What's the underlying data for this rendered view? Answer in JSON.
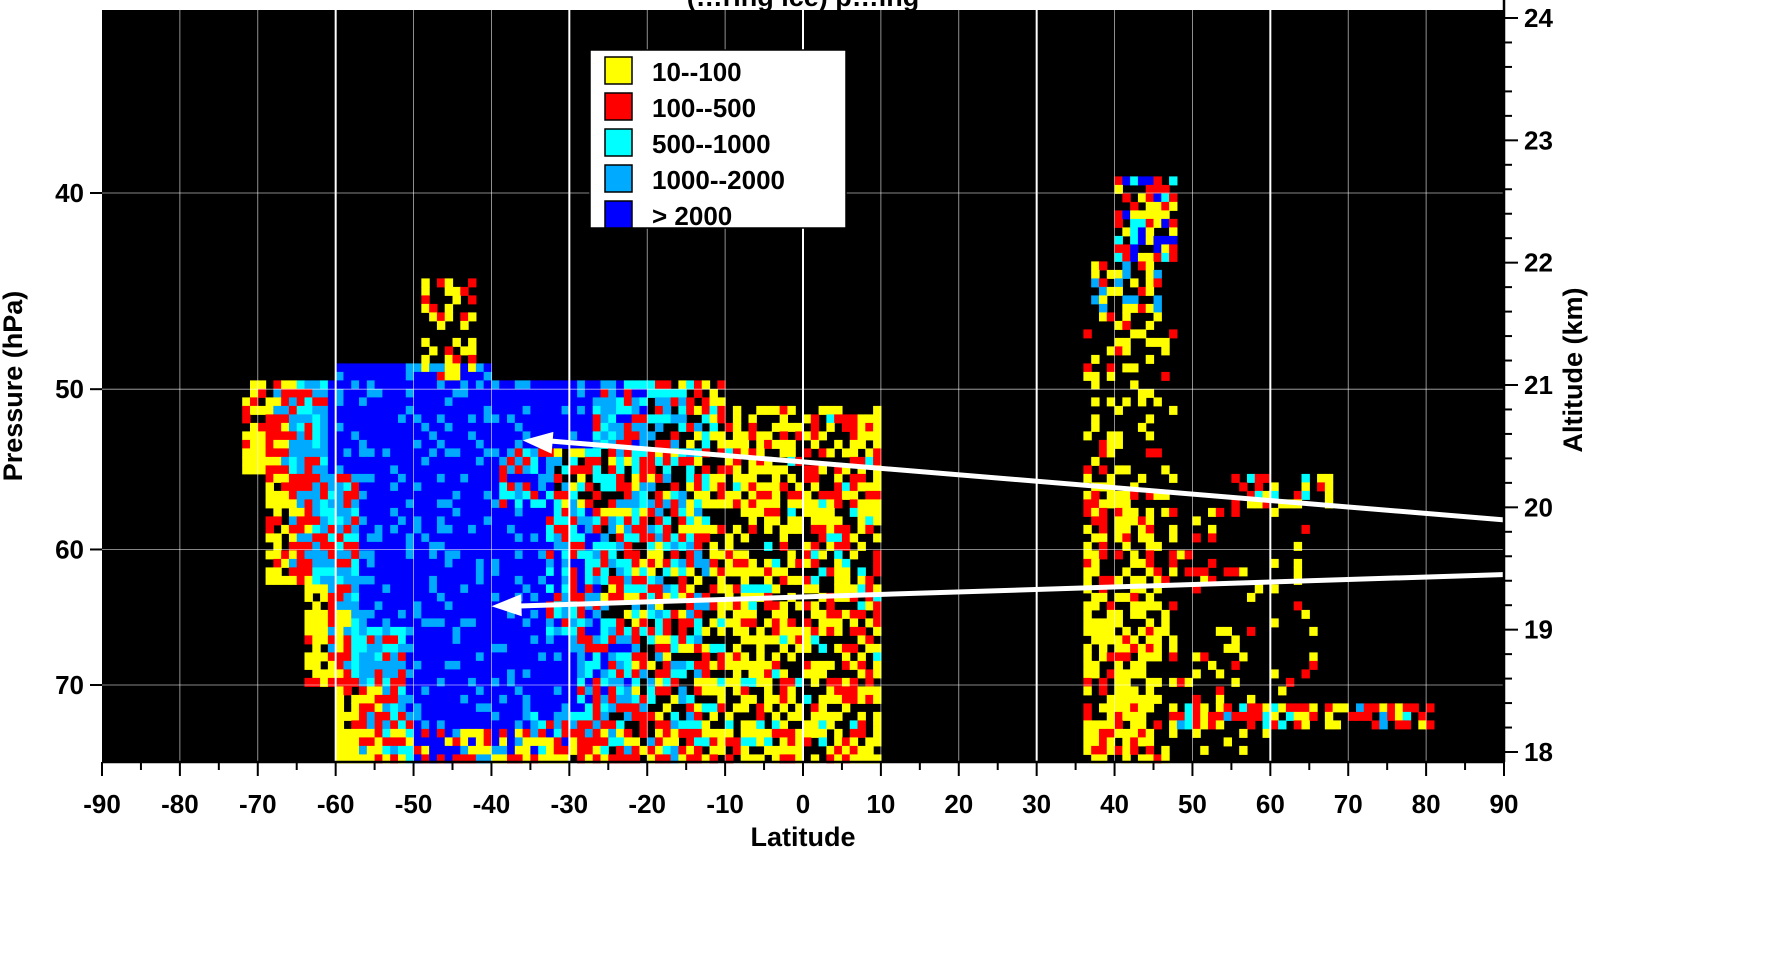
{
  "chart_data": {
    "type": "heatmap",
    "title": "(…ring ice) p…ing",
    "xlabel": "Latitude",
    "ylabel": "Pressure (hPa)",
    "y2label": "Altitude (km)",
    "xlim": [
      -90,
      90
    ],
    "x_ticks": [
      "-90",
      "-80",
      "-70",
      "-60",
      "-50",
      "-40",
      "-30",
      "-20",
      "-10",
      "0",
      "10",
      "20",
      "30",
      "40",
      "50",
      "60",
      "70",
      "80",
      "90"
    ],
    "y_ticks": [
      {
        "label": "40",
        "value": 40
      },
      {
        "label": "50",
        "value": 50
      },
      {
        "label": "60",
        "value": 60
      },
      {
        "label": "70",
        "value": 70
      }
    ],
    "y2_ticks": [
      {
        "label": "24",
        "value": 24
      },
      {
        "label": "23",
        "value": 23
      },
      {
        "label": "22",
        "value": 22
      },
      {
        "label": "21",
        "value": 21
      },
      {
        "label": "20",
        "value": 20
      },
      {
        "label": "19",
        "value": 19
      },
      {
        "label": "18",
        "value": 18
      }
    ],
    "legend": {
      "placement": "top-center",
      "entries": [
        {
          "label": "10--100",
          "color": "#ffff00"
        },
        {
          "label": "100--500",
          "color": "#ff0000"
        },
        {
          "label": "500--1000",
          "color": "#00ffff"
        },
        {
          "label": "1000--2000",
          "color": "#00aaff"
        },
        {
          "label": "> 2000",
          "color": "#0000ff"
        }
      ]
    },
    "background_color": "#000000",
    "gridline_color": "#ffffff",
    "major_gridlines_x": [
      -60,
      -30,
      0,
      30,
      60
    ],
    "regions": [
      {
        "name": "southern-hemisphere-cloud",
        "lat_range": [
          -72,
          10
        ],
        "pressure_range": [
          44,
          75
        ],
        "core_category": "> 2000",
        "core_lat_range": [
          -58,
          -30
        ],
        "core_pressure_range": [
          50,
          73
        ]
      },
      {
        "name": "northern-hemisphere-column",
        "lat_range": [
          36,
          48
        ],
        "pressure_range": [
          39,
          75
        ]
      },
      {
        "name": "northern-hemisphere-sheet",
        "lat_range": [
          48,
          80
        ],
        "pressure_range": [
          55,
          75
        ]
      }
    ],
    "annotations": [
      {
        "type": "arrow",
        "points_to": [
          -36,
          53
        ]
      },
      {
        "type": "arrow",
        "points_to": [
          -40,
          64
        ]
      }
    ]
  }
}
